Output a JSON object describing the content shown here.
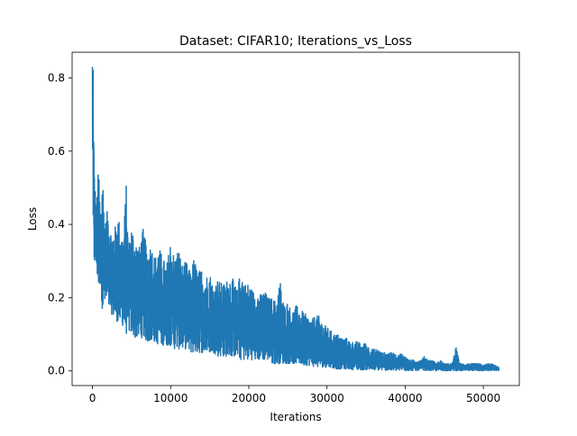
{
  "chart_data": {
    "type": "line",
    "title": "Dataset: CIFAR10; Iterations_vs_Loss",
    "xlabel": "Iterations",
    "ylabel": "Loss",
    "xlim": [
      -2600,
      54600
    ],
    "ylim": [
      -0.04,
      0.87
    ],
    "x_ticks": [
      0,
      10000,
      20000,
      30000,
      40000,
      50000
    ],
    "x_tick_labels": [
      "0",
      "10000",
      "20000",
      "30000",
      "40000",
      "50000"
    ],
    "y_ticks": [
      0.0,
      0.2,
      0.4,
      0.6,
      0.8
    ],
    "y_tick_labels": [
      "0.0",
      "0.2",
      "0.4",
      "0.6",
      "0.8"
    ],
    "grid": false,
    "legend": "none",
    "line_color": "#1f77b4",
    "series": [
      {
        "x": [
          0,
          100,
          200,
          300,
          500,
          800,
          1000,
          1300,
          1600,
          2000,
          2300,
          2600,
          3000,
          3300,
          3600,
          4000,
          4300,
          4600,
          5000,
          5500,
          6000,
          6500,
          7000,
          7500,
          8000,
          8500,
          9000,
          9500,
          10000,
          10500,
          11000,
          11500,
          12000,
          12500,
          13000,
          13500,
          14000,
          14500,
          15000,
          15500,
          16000,
          16500,
          17000,
          17500,
          18000,
          18500,
          19000,
          19500,
          20000,
          20500,
          21000,
          21500,
          22000,
          22500,
          23000,
          23500,
          24000,
          24500,
          25000,
          25500,
          26000,
          26500,
          27000,
          27500,
          28000,
          28500,
          29000,
          29500,
          30000,
          30500,
          31000,
          31500,
          32000,
          32500,
          33000,
          33500,
          34000,
          34500,
          35000,
          35500,
          36000,
          36500,
          37000,
          37500,
          38000,
          38500,
          39000,
          39500,
          40000,
          40500,
          41000,
          41500,
          42000,
          42500,
          43000,
          43500,
          44000,
          44500,
          45000,
          45500,
          46000,
          46500,
          47000,
          47500,
          48000,
          48500,
          49000,
          49500,
          50000,
          50500,
          51000,
          51500,
          52000
        ],
        "upper": [
          0.83,
          0.82,
          0.57,
          0.52,
          0.45,
          0.57,
          0.44,
          0.55,
          0.4,
          0.45,
          0.39,
          0.38,
          0.4,
          0.43,
          0.38,
          0.37,
          0.52,
          0.34,
          0.4,
          0.36,
          0.34,
          0.39,
          0.33,
          0.35,
          0.31,
          0.34,
          0.31,
          0.29,
          0.36,
          0.31,
          0.34,
          0.29,
          0.3,
          0.27,
          0.31,
          0.27,
          0.28,
          0.26,
          0.27,
          0.23,
          0.25,
          0.24,
          0.24,
          0.26,
          0.25,
          0.22,
          0.28,
          0.24,
          0.24,
          0.22,
          0.22,
          0.21,
          0.22,
          0.2,
          0.2,
          0.19,
          0.25,
          0.18,
          0.19,
          0.16,
          0.18,
          0.17,
          0.16,
          0.15,
          0.14,
          0.15,
          0.15,
          0.13,
          0.12,
          0.11,
          0.1,
          0.1,
          0.09,
          0.09,
          0.08,
          0.08,
          0.08,
          0.07,
          0.08,
          0.06,
          0.06,
          0.06,
          0.05,
          0.05,
          0.05,
          0.05,
          0.04,
          0.05,
          0.04,
          0.03,
          0.03,
          0.03,
          0.03,
          0.04,
          0.03,
          0.03,
          0.02,
          0.03,
          0.02,
          0.02,
          0.02,
          0.065,
          0.02,
          0.02,
          0.02,
          0.02,
          0.02,
          0.02,
          0.015,
          0.02,
          0.02,
          0.015,
          0.01
        ],
        "lower": [
          0.66,
          0.29,
          0.28,
          0.3,
          0.28,
          0.22,
          0.24,
          0.16,
          0.18,
          0.17,
          0.16,
          0.15,
          0.14,
          0.13,
          0.13,
          0.12,
          0.1,
          0.11,
          0.1,
          0.09,
          0.09,
          0.09,
          0.08,
          0.08,
          0.08,
          0.07,
          0.07,
          0.07,
          0.07,
          0.06,
          0.06,
          0.06,
          0.06,
          0.05,
          0.05,
          0.05,
          0.05,
          0.05,
          0.05,
          0.05,
          0.04,
          0.04,
          0.04,
          0.04,
          0.04,
          0.04,
          0.03,
          0.03,
          0.03,
          0.03,
          0.03,
          0.03,
          0.03,
          0.03,
          0.02,
          0.02,
          0.02,
          0.02,
          0.02,
          0.02,
          0.02,
          0.02,
          0.015,
          0.015,
          0.015,
          0.01,
          0.01,
          0.01,
          0.01,
          0.01,
          0.005,
          0.005,
          0.005,
          0.005,
          0.005,
          0.003,
          0.003,
          0.003,
          0.003,
          0.002,
          0.002,
          0.002,
          0.002,
          0.002,
          0.001,
          0.001,
          0.001,
          0.001,
          0.001,
          0.001,
          0.001,
          0.001,
          0.001,
          0.001,
          0.001,
          0.001,
          0.0005,
          0.0005,
          0.0005,
          0.0005,
          0.0005,
          0.0005,
          0.0005,
          0.0005,
          0.0005,
          0.0005,
          0.0005,
          0.0005,
          0.0005,
          0.0005,
          0.0005,
          0.0005,
          0.0005
        ]
      }
    ]
  }
}
